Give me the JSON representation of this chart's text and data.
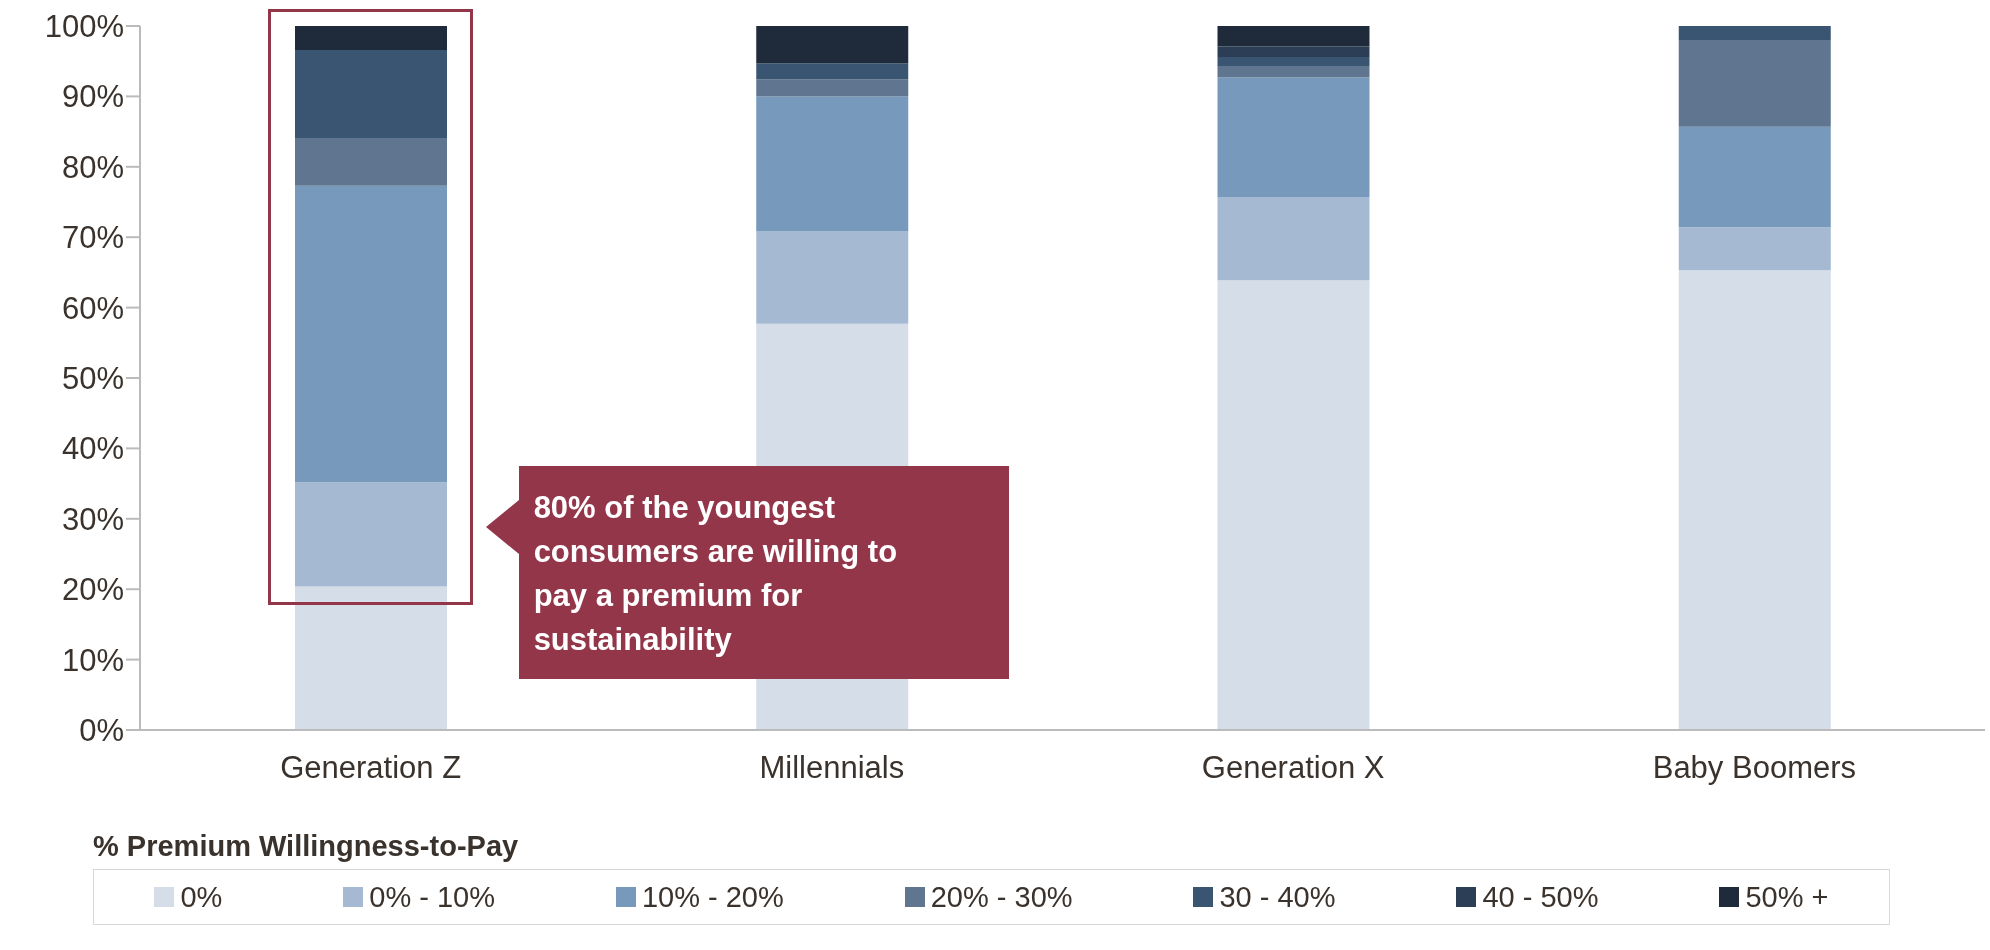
{
  "chart_data": {
    "type": "bar",
    "stacked": true,
    "categories": [
      "Generation Z",
      "Millennials",
      "Generation X",
      "Baby Boomers"
    ],
    "series": [
      {
        "name": "0%",
        "color": "#d5dde8",
        "values": [
          20.4,
          57.7,
          63.9,
          65.3
        ]
      },
      {
        "name": "0% - 10%",
        "color": "#a5bad2",
        "values": [
          14.8,
          13.1,
          11.8,
          6.1
        ]
      },
      {
        "name": "10% - 20%",
        "color": "#7699bc",
        "values": [
          42.1,
          19.2,
          17.0,
          14.3
        ]
      },
      {
        "name": "20% - 30%",
        "color": "#5f7590",
        "values": [
          6.8,
          2.4,
          1.5,
          12.3
        ]
      },
      {
        "name": "30 - 40%",
        "color": "#3a5572",
        "values": [
          12.5,
          2.3,
          1.4,
          2.0
        ]
      },
      {
        "name": "40 - 50%",
        "color": "#2c3e55",
        "values": [
          0,
          0,
          1.5,
          0
        ]
      },
      {
        "name": "50% +",
        "color": "#1f2a3a",
        "values": [
          3.4,
          5.3,
          2.9,
          0
        ]
      }
    ],
    "ylim": [
      0,
      100
    ],
    "yticks": [
      {
        "value": 0,
        "label": "0%"
      },
      {
        "value": 10,
        "label": "10%"
      },
      {
        "value": 20,
        "label": "20%"
      },
      {
        "value": 30,
        "label": "30%"
      },
      {
        "value": 40,
        "label": "40%"
      },
      {
        "value": 50,
        "label": "50%"
      },
      {
        "value": 60,
        "label": "60%"
      },
      {
        "value": 70,
        "label": "70%"
      },
      {
        "value": 80,
        "label": "80%"
      },
      {
        "value": 90,
        "label": "90%"
      },
      {
        "value": 100,
        "label": "100%"
      }
    ],
    "legend_title": "% Premium Willingness-to-Pay",
    "legend": "bottom",
    "grid": false,
    "annotations": [
      "80% of the youngest consumers are willing to pay a premium for sustainability"
    ]
  }
}
